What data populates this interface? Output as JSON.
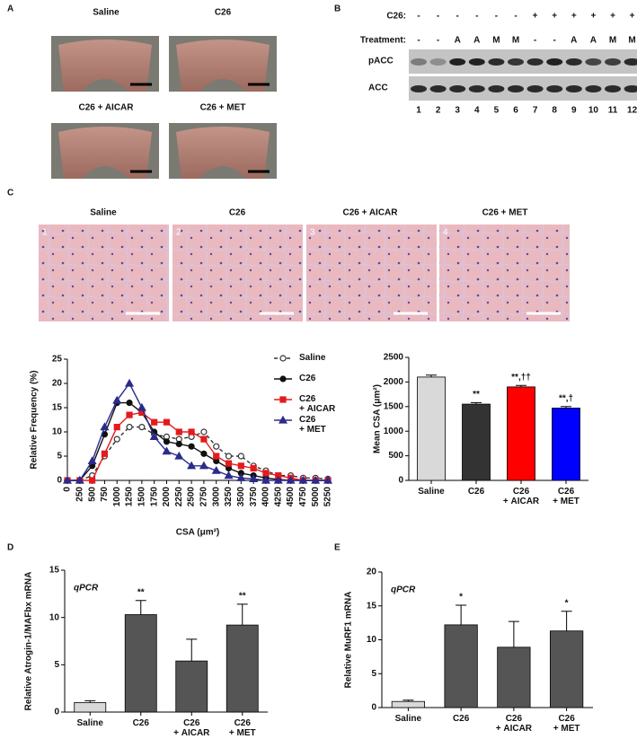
{
  "panel_labels": [
    "A",
    "B",
    "C",
    "D",
    "E"
  ],
  "panel_a": {
    "images": [
      "Saline",
      "C26",
      "C26 + AICAR",
      "C26 + MET"
    ]
  },
  "panel_b": {
    "row_labels": [
      "C26:",
      "Treatment:"
    ],
    "c26": [
      "-",
      "-",
      "-",
      "-",
      "-",
      "-",
      "+",
      "+",
      "+",
      "+",
      "+",
      "+"
    ],
    "treatment": [
      "-",
      "-",
      "A",
      "A",
      "M",
      "M",
      "-",
      "-",
      "A",
      "A",
      "M",
      "M"
    ],
    "blots": [
      "pACC",
      "ACC"
    ],
    "lanes": [
      1,
      2,
      3,
      4,
      5,
      6,
      7,
      8,
      9,
      10,
      11,
      12
    ]
  },
  "panel_c": {
    "images": [
      {
        "label": "Saline",
        "number": "1"
      },
      {
        "label": "C26",
        "number": "2"
      },
      {
        "label": "C26 + AICAR",
        "number": "3"
      },
      {
        "label": "C26 + MET",
        "number": "4"
      }
    ]
  },
  "chart_data": [
    {
      "type": "line",
      "xlabel": "CSA (μm²)",
      "ylabel": "Relative Frequency (%)",
      "x": [
        0,
        250,
        500,
        750,
        1000,
        1250,
        1500,
        1750,
        2000,
        2250,
        2500,
        2750,
        3000,
        3250,
        3500,
        3750,
        4000,
        4250,
        4500,
        4750,
        5000,
        5250
      ],
      "xlim": [
        0,
        5250
      ],
      "xticks": [
        0,
        250,
        500,
        750,
        1000,
        1250,
        1500,
        1750,
        2000,
        2250,
        2500,
        2750,
        3000,
        3250,
        3500,
        3750,
        4000,
        4250,
        4500,
        4750,
        5000,
        5250
      ],
      "ylim": [
        0,
        25
      ],
      "yticks": [
        0,
        5,
        10,
        15,
        20,
        25
      ],
      "series": [
        {
          "name": "Saline",
          "color": "#333333",
          "marker": "open-circle",
          "dashed": true,
          "values": [
            0,
            0,
            1,
            5,
            8.5,
            11,
            11,
            9.5,
            9,
            8.5,
            9,
            10,
            7,
            5,
            5,
            3,
            2,
            1,
            1,
            0.5,
            0.5,
            0.3
          ]
        },
        {
          "name": "C26",
          "color": "#111111",
          "marker": "circle",
          "dashed": false,
          "values": [
            0,
            0,
            3,
            9.5,
            16,
            16,
            14,
            10,
            8,
            7.5,
            7,
            5.5,
            4,
            2.5,
            1.5,
            1,
            0.5,
            0.2,
            0,
            0,
            0,
            0
          ]
        },
        {
          "name": "C26 + AICAR",
          "color": "#e41a1c",
          "marker": "square",
          "dashed": false,
          "values": [
            0,
            0,
            0,
            5.5,
            11,
            13.5,
            14,
            12,
            12,
            10,
            10,
            8.5,
            5,
            3.5,
            3,
            2.5,
            1.5,
            1,
            0.5,
            0,
            0,
            0
          ]
        },
        {
          "name": "C26 + MET",
          "color": "#2b2b8c",
          "marker": "triangle",
          "dashed": false,
          "values": [
            0,
            0,
            4,
            11,
            16.5,
            20,
            15,
            9,
            6,
            5,
            3,
            3,
            2,
            1,
            0.5,
            0.3,
            0,
            0,
            0,
            0,
            0,
            0
          ]
        }
      ]
    },
    {
      "type": "bar",
      "ylabel": "Mean CSA (μm²)",
      "categories": [
        "Saline",
        "C26",
        "C26 + AICAR",
        "C26 + MET"
      ],
      "values": [
        2100,
        1550,
        1900,
        1470
      ],
      "errors": [
        40,
        30,
        30,
        30
      ],
      "colors": [
        "#d9d9d9",
        "#333333",
        "#ff0000",
        "#0000ff"
      ],
      "annotations": [
        null,
        "**",
        "**,††",
        "**,†"
      ],
      "ylim": [
        0,
        2500
      ],
      "yticks": [
        0,
        500,
        1000,
        1500,
        2000,
        2500
      ]
    },
    {
      "type": "bar",
      "ylabel": "Relative Atrogin-1/MAFbx mRNA",
      "note": "qPCR",
      "categories": [
        "Saline",
        "C26",
        "C26 + AICAR",
        "C26 + MET"
      ],
      "values": [
        1,
        10.3,
        5.4,
        9.2
      ],
      "errors": [
        0.2,
        1.5,
        2.3,
        2.2
      ],
      "colors": [
        "#d9d9d9",
        "#555555",
        "#555555",
        "#555555"
      ],
      "annotations": [
        null,
        "**",
        null,
        "**"
      ],
      "ylim": [
        0,
        15
      ],
      "yticks": [
        0,
        5,
        10,
        15
      ]
    },
    {
      "type": "bar",
      "ylabel": "Relative MuRF1 mRNA",
      "note": "qPCR",
      "categories": [
        "Saline",
        "C26",
        "C26 + AICAR",
        "C26 + MET"
      ],
      "values": [
        0.9,
        12.2,
        8.9,
        11.3
      ],
      "errors": [
        0.2,
        2.9,
        3.8,
        2.9
      ],
      "colors": [
        "#d9d9d9",
        "#555555",
        "#555555",
        "#555555"
      ],
      "annotations": [
        null,
        "*",
        null,
        "*"
      ],
      "ylim": [
        0,
        20
      ],
      "yticks": [
        0,
        5,
        10,
        15,
        20
      ]
    }
  ]
}
